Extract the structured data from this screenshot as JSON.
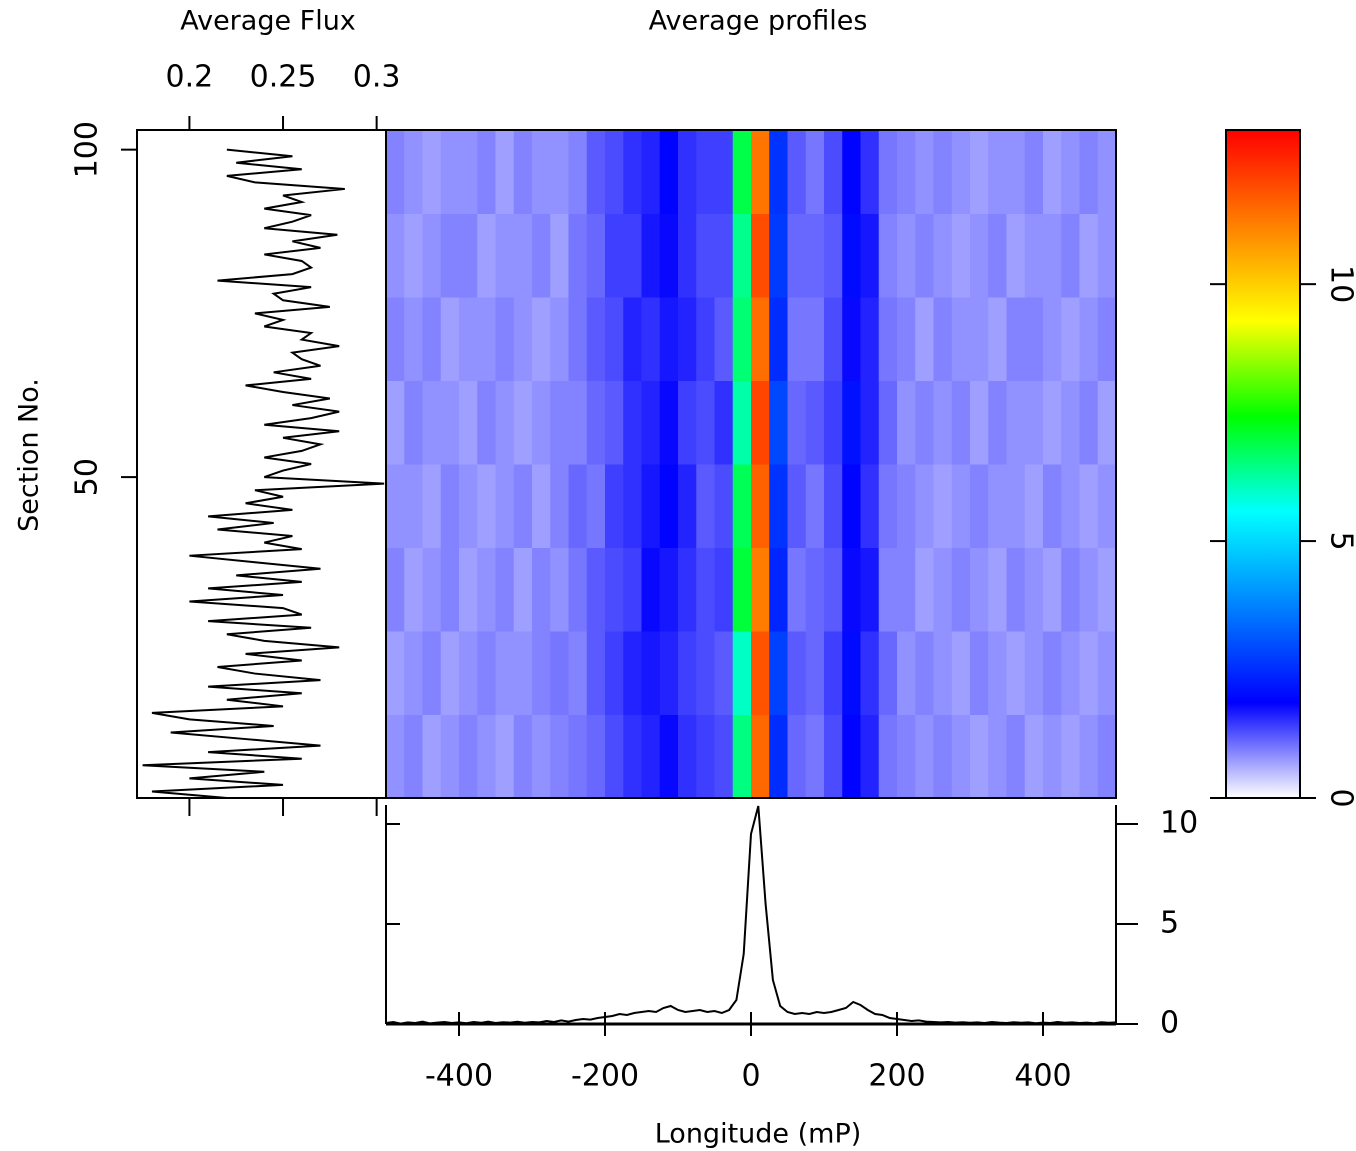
{
  "chart_data": [
    {
      "type": "flux",
      "title": "Average Flux",
      "ylabel": "Section No.",
      "color": "#000000",
      "xlim": [
        0.172,
        0.305
      ],
      "xticks": [
        0.2,
        0.25,
        0.3
      ],
      "ylim": [
        1,
        103
      ],
      "yticks": [
        50,
        100
      ],
      "y": [
        1,
        2,
        3,
        4,
        5,
        6,
        7,
        8,
        9,
        10,
        11,
        12,
        13,
        14,
        15,
        16,
        17,
        18,
        19,
        20,
        21,
        22,
        23,
        24,
        25,
        26,
        27,
        28,
        29,
        30,
        31,
        32,
        33,
        34,
        35,
        36,
        37,
        38,
        39,
        40,
        41,
        42,
        43,
        44,
        45,
        46,
        47,
        48,
        49,
        50,
        51,
        52,
        53,
        54,
        55,
        56,
        57,
        58,
        59,
        60,
        61,
        62,
        63,
        64,
        65,
        66,
        67,
        68,
        69,
        70,
        71,
        72,
        73,
        74,
        75,
        76,
        77,
        78,
        79,
        80,
        81,
        82,
        83,
        84,
        85,
        86,
        87,
        88,
        89,
        90,
        91,
        92,
        93,
        94,
        95,
        96,
        97,
        98,
        99,
        100
      ],
      "values": [
        0.22,
        0.18,
        0.25,
        0.2,
        0.24,
        0.175,
        0.26,
        0.21,
        0.27,
        0.23,
        0.19,
        0.245,
        0.2,
        0.18,
        0.25,
        0.22,
        0.26,
        0.21,
        0.27,
        0.235,
        0.215,
        0.26,
        0.23,
        0.28,
        0.24,
        0.22,
        0.265,
        0.21,
        0.26,
        0.25,
        0.2,
        0.25,
        0.21,
        0.26,
        0.225,
        0.27,
        0.235,
        0.2,
        0.26,
        0.24,
        0.255,
        0.215,
        0.245,
        0.21,
        0.255,
        0.23,
        0.25,
        0.235,
        0.304,
        0.24,
        0.25,
        0.265,
        0.24,
        0.26,
        0.27,
        0.25,
        0.28,
        0.24,
        0.265,
        0.28,
        0.255,
        0.275,
        0.25,
        0.23,
        0.265,
        0.245,
        0.27,
        0.26,
        0.255,
        0.28,
        0.26,
        0.265,
        0.24,
        0.25,
        0.235,
        0.275,
        0.25,
        0.245,
        0.265,
        0.215,
        0.255,
        0.265,
        0.26,
        0.24,
        0.27,
        0.255,
        0.279,
        0.24,
        0.255,
        0.265,
        0.24,
        0.26,
        0.25,
        0.283,
        0.235,
        0.22,
        0.26,
        0.225,
        0.255,
        0.22
      ]
    },
    {
      "type": "heatmap",
      "title": "Average profiles",
      "xlim": [
        -500,
        500
      ],
      "ylim": [
        1,
        103
      ],
      "colors": [
        "#ffffff",
        "#0000ff",
        "#0080ff",
        "#00ffff",
        "#00ff00",
        "#ffff00",
        "#ff8000",
        "#ff0000"
      ],
      "zlim": [
        0,
        13
      ],
      "zticks": [
        0,
        5,
        10
      ],
      "z": [
        [
          0.8,
          0.9,
          0.7,
          0.8,
          0.9,
          0.8,
          0.7,
          0.9,
          0.8,
          0.9,
          1.0,
          1.1,
          1.3,
          1.5,
          1.6,
          1.8,
          1.5,
          1.4,
          1.3,
          6.5,
          11.5,
          2.5,
          1.1,
          1.0,
          1.3,
          1.9,
          1.6,
          1.0,
          0.9,
          0.8,
          0.9,
          0.8,
          0.7,
          0.8,
          0.9,
          0.7,
          0.8,
          0.7,
          0.8,
          0.9
        ],
        [
          0.7,
          0.8,
          0.9,
          0.7,
          0.8,
          0.9,
          0.8,
          0.8,
          0.9,
          1.0,
          0.9,
          1.2,
          1.4,
          1.6,
          1.7,
          1.6,
          1.4,
          1.3,
          1.2,
          6.0,
          11.8,
          2.8,
          1.2,
          1.1,
          1.4,
          2.0,
          1.5,
          1.1,
          0.8,
          0.9,
          0.8,
          0.7,
          0.9,
          0.8,
          0.7,
          0.8,
          0.9,
          0.8,
          0.7,
          0.8
        ],
        [
          0.9,
          0.7,
          0.8,
          0.9,
          0.7,
          0.8,
          0.9,
          0.7,
          0.9,
          0.8,
          1.0,
          1.2,
          1.3,
          1.4,
          1.8,
          1.7,
          1.5,
          1.3,
          1.4,
          7.0,
          11.2,
          2.4,
          1.0,
          1.1,
          1.2,
          1.8,
          1.7,
          0.9,
          0.9,
          0.7,
          0.8,
          0.9,
          0.8,
          0.7,
          0.9,
          0.8,
          0.7,
          0.9,
          0.8,
          0.7
        ],
        [
          0.8,
          0.8,
          0.7,
          0.9,
          0.8,
          0.7,
          0.8,
          0.9,
          0.7,
          0.9,
          1.1,
          1.0,
          1.4,
          1.5,
          1.7,
          1.9,
          1.6,
          1.2,
          1.3,
          6.8,
          11.6,
          2.6,
          1.2,
          1.0,
          1.3,
          1.9,
          1.5,
          1.0,
          0.9,
          0.8,
          0.7,
          0.8,
          0.9,
          0.8,
          0.8,
          0.7,
          0.9,
          0.8,
          0.7,
          0.8
        ],
        [
          0.7,
          0.9,
          0.8,
          0.8,
          0.7,
          0.9,
          0.8,
          0.7,
          0.8,
          0.9,
          0.9,
          1.1,
          1.2,
          1.5,
          1.6,
          1.8,
          1.4,
          1.3,
          1.5,
          6.2,
          12.0,
          2.9,
          1.1,
          1.2,
          1.4,
          2.1,
          1.6,
          1.1,
          0.8,
          0.9,
          0.8,
          0.9,
          0.7,
          0.9,
          0.8,
          0.8,
          0.7,
          0.8,
          0.9,
          0.7
        ],
        [
          0.9,
          0.8,
          0.9,
          0.7,
          0.8,
          0.8,
          0.9,
          0.8,
          0.7,
          0.8,
          1.0,
          1.2,
          1.3,
          1.6,
          1.5,
          1.7,
          1.6,
          1.4,
          1.2,
          6.6,
          11.4,
          2.5,
          1.0,
          1.0,
          1.3,
          1.8,
          1.6,
          1.0,
          0.9,
          0.7,
          0.9,
          0.8,
          0.8,
          0.7,
          0.9,
          0.9,
          0.8,
          0.7,
          0.8,
          0.9
        ],
        [
          0.8,
          0.7,
          0.8,
          0.9,
          0.9,
          0.7,
          0.8,
          0.8,
          0.9,
          0.7,
          1.0,
          1.1,
          1.4,
          1.4,
          1.7,
          1.8,
          1.5,
          1.3,
          1.3,
          6.4,
          11.9,
          2.7,
          1.1,
          1.1,
          1.2,
          2.0,
          1.7,
          0.9,
          0.8,
          0.9,
          0.8,
          0.7,
          0.8,
          0.9,
          0.7,
          0.8,
          0.8,
          0.9,
          0.7,
          0.8
        ],
        [
          0.9,
          0.8,
          0.7,
          0.8,
          0.8,
          0.9,
          0.7,
          0.9,
          0.8,
          0.8,
          0.9,
          1.2,
          1.3,
          1.5,
          1.6,
          1.9,
          1.5,
          1.4,
          1.4,
          6.9,
          11.3,
          2.6,
          1.2,
          1.0,
          1.3,
          1.9,
          1.5,
          1.0,
          0.9,
          0.8,
          0.9,
          0.8,
          0.7,
          0.8,
          0.8,
          0.9,
          0.7,
          0.8,
          0.9,
          0.8
        ]
      ]
    },
    {
      "type": "line",
      "xlabel": "Longitude (mP)",
      "color": "#000000",
      "xlim": [
        -500,
        500
      ],
      "xticks": [
        -400,
        -200,
        0,
        200,
        400
      ],
      "ylim": [
        0,
        10.95
      ],
      "yticks": [
        0,
        5,
        10
      ],
      "x": [
        -500,
        -490,
        -480,
        -470,
        -460,
        -450,
        -440,
        -430,
        -420,
        -410,
        -400,
        -390,
        -380,
        -370,
        -360,
        -350,
        -340,
        -330,
        -320,
        -310,
        -300,
        -290,
        -280,
        -270,
        -260,
        -250,
        -240,
        -230,
        -220,
        -210,
        -200,
        -190,
        -180,
        -170,
        -160,
        -150,
        -140,
        -130,
        -120,
        -110,
        -100,
        -90,
        -80,
        -70,
        -60,
        -50,
        -40,
        -30,
        -20,
        -10,
        0,
        10,
        20,
        30,
        40,
        50,
        60,
        70,
        80,
        90,
        100,
        110,
        120,
        130,
        140,
        150,
        160,
        170,
        180,
        190,
        200,
        210,
        220,
        230,
        240,
        250,
        260,
        270,
        280,
        290,
        300,
        310,
        320,
        330,
        340,
        350,
        360,
        370,
        380,
        390,
        400,
        410,
        420,
        430,
        440,
        450,
        460,
        470,
        480,
        490,
        500
      ],
      "values": [
        0.05,
        0.1,
        0.02,
        0.08,
        0.05,
        0.12,
        0.03,
        0.07,
        0.1,
        0.05,
        0.08,
        0.04,
        0.1,
        0.06,
        0.12,
        0.05,
        0.09,
        0.07,
        0.11,
        0.06,
        0.1,
        0.08,
        0.15,
        0.1,
        0.18,
        0.12,
        0.2,
        0.25,
        0.22,
        0.3,
        0.35,
        0.4,
        0.5,
        0.45,
        0.55,
        0.6,
        0.65,
        0.6,
        0.8,
        0.9,
        0.7,
        0.6,
        0.65,
        0.7,
        0.6,
        0.65,
        0.55,
        0.7,
        1.2,
        3.5,
        9.5,
        10.9,
        6.0,
        2.2,
        0.9,
        0.6,
        0.5,
        0.55,
        0.5,
        0.6,
        0.55,
        0.6,
        0.7,
        0.8,
        1.1,
        0.95,
        0.7,
        0.5,
        0.45,
        0.3,
        0.25,
        0.2,
        0.15,
        0.18,
        0.12,
        0.1,
        0.08,
        0.1,
        0.07,
        0.09,
        0.06,
        0.08,
        0.05,
        0.1,
        0.07,
        0.05,
        0.09,
        0.06,
        0.08,
        0.04,
        0.07,
        0.05,
        0.1,
        0.06,
        0.08,
        0.05,
        0.07,
        0.04,
        0.09,
        0.06,
        0.08
      ]
    }
  ]
}
